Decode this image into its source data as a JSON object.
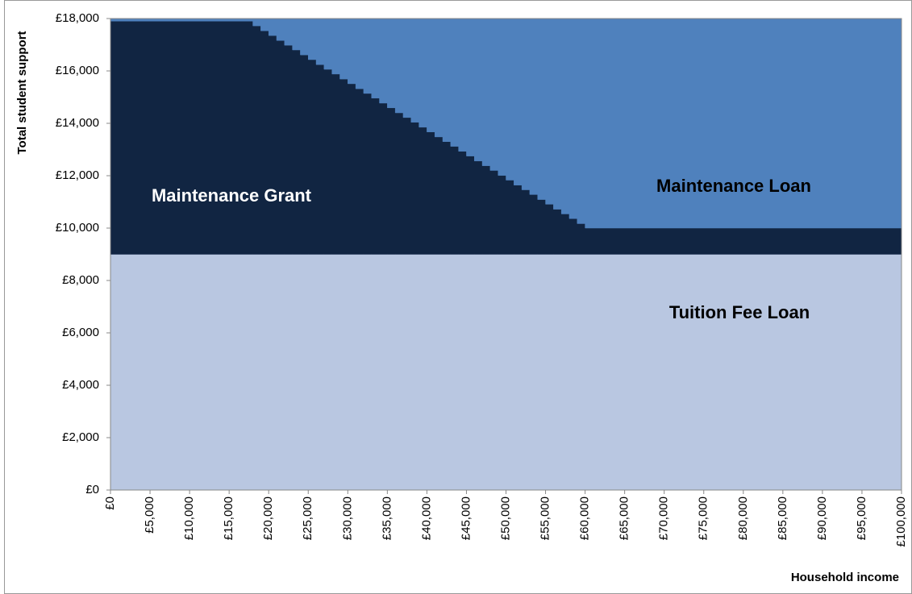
{
  "chart_data": {
    "type": "area",
    "stacked": true,
    "step": true,
    "ylabel": "Total student support",
    "xlabel": "Household income",
    "x": [
      0,
      18000,
      19000,
      20000,
      21000,
      22000,
      23000,
      24000,
      25000,
      26000,
      27000,
      28000,
      29000,
      30000,
      31000,
      32000,
      33000,
      34000,
      35000,
      36000,
      37000,
      38000,
      39000,
      40000,
      41000,
      42000,
      43000,
      44000,
      45000,
      46000,
      47000,
      48000,
      49000,
      50000,
      51000,
      52000,
      53000,
      54000,
      55000,
      56000,
      57000,
      58000,
      59000,
      60000,
      100000
    ],
    "series": [
      {
        "name": "Tuition Fee Loan",
        "color": "#b9c7e1",
        "values": [
          9000,
          9000,
          9000,
          9000,
          9000,
          9000,
          9000,
          9000,
          9000,
          9000,
          9000,
          9000,
          9000,
          9000,
          9000,
          9000,
          9000,
          9000,
          9000,
          9000,
          9000,
          9000,
          9000,
          9000,
          9000,
          9000,
          9000,
          9000,
          9000,
          9000,
          9000,
          9000,
          9000,
          9000,
          9000,
          9000,
          9000,
          9000,
          9000,
          9000,
          9000,
          9000,
          9000,
          9000,
          9000
        ]
      },
      {
        "name": "Maintenance Grant",
        "color": "#112542",
        "values": [
          8900,
          8720,
          8530,
          8350,
          8160,
          7980,
          7800,
          7610,
          7430,
          7240,
          7060,
          6880,
          6690,
          6510,
          6320,
          6140,
          5960,
          5770,
          5590,
          5400,
          5220,
          5040,
          4850,
          4670,
          4480,
          4300,
          4120,
          3930,
          3750,
          3560,
          3380,
          3200,
          3010,
          2830,
          2640,
          2460,
          2280,
          2090,
          1910,
          1720,
          1540,
          1360,
          1170,
          1000,
          1000
        ]
      },
      {
        "name": "Maintenance Loan",
        "color": "#4f81bd",
        "values": [
          100,
          280,
          470,
          650,
          840,
          1020,
          1200,
          1390,
          1570,
          1760,
          1940,
          2120,
          2310,
          2490,
          2680,
          2860,
          3040,
          3230,
          3410,
          3600,
          3780,
          3960,
          4150,
          4330,
          4520,
          4700,
          4880,
          5070,
          5250,
          5440,
          5620,
          5800,
          5990,
          6170,
          6360,
          6540,
          6720,
          6910,
          7090,
          7280,
          7460,
          7640,
          7830,
          8000,
          8000
        ]
      }
    ],
    "xlim": [
      0,
      100000
    ],
    "ylim": [
      0,
      18000
    ],
    "xticks": [
      {
        "value": 0,
        "label": "£0"
      },
      {
        "value": 5000,
        "label": "£5,000"
      },
      {
        "value": 10000,
        "label": "£10,000"
      },
      {
        "value": 15000,
        "label": "£15,000"
      },
      {
        "value": 20000,
        "label": "£20,000"
      },
      {
        "value": 25000,
        "label": "£25,000"
      },
      {
        "value": 30000,
        "label": "£30,000"
      },
      {
        "value": 35000,
        "label": "£35,000"
      },
      {
        "value": 40000,
        "label": "£40,000"
      },
      {
        "value": 45000,
        "label": "£45,000"
      },
      {
        "value": 50000,
        "label": "£50,000"
      },
      {
        "value": 55000,
        "label": "£55,000"
      },
      {
        "value": 60000,
        "label": "£60,000"
      },
      {
        "value": 65000,
        "label": "£65,000"
      },
      {
        "value": 70000,
        "label": "£70,000"
      },
      {
        "value": 75000,
        "label": "£75,000"
      },
      {
        "value": 80000,
        "label": "£80,000"
      },
      {
        "value": 85000,
        "label": "£85,000"
      },
      {
        "value": 90000,
        "label": "£90,000"
      },
      {
        "value": 95000,
        "label": "£95,000"
      },
      {
        "value": 100000,
        "label": "£100,000"
      }
    ],
    "yticks": [
      {
        "value": 0,
        "label": "£0"
      },
      {
        "value": 2000,
        "label": "£2,000"
      },
      {
        "value": 4000,
        "label": "£4,000"
      },
      {
        "value": 6000,
        "label": "£6,000"
      },
      {
        "value": 8000,
        "label": "£8,000"
      },
      {
        "value": 10000,
        "label": "£10,000"
      },
      {
        "value": 12000,
        "label": "£12,000"
      },
      {
        "value": 14000,
        "label": "£14,000"
      },
      {
        "value": 16000,
        "label": "£16,000"
      },
      {
        "value": 18000,
        "label": "£18,000"
      }
    ],
    "legend": false
  }
}
